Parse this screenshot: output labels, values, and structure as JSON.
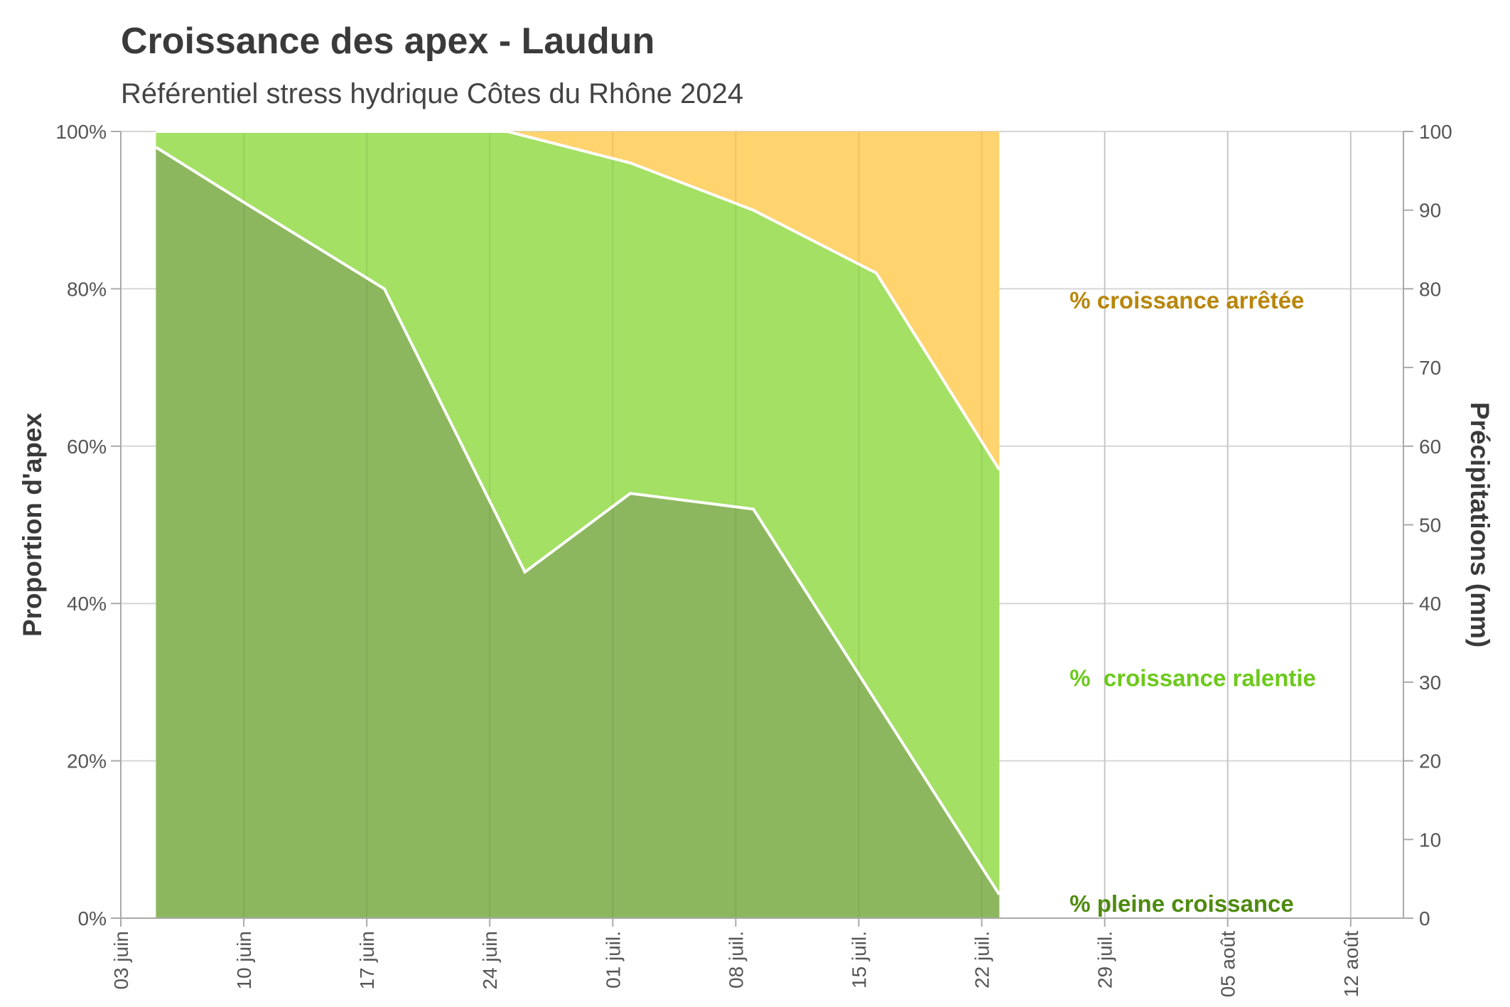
{
  "header": {
    "title": "Croissance des apex - Laudun",
    "subtitle": "Référentiel stress hydrique Côtes du Rhône 2024"
  },
  "chart_data": {
    "type": "area",
    "title": "Croissance des apex - Laudun",
    "subtitle": "Référentiel stress hydrique Côtes du Rhône 2024",
    "ylabel": "Proportion d'apex",
    "y2label": "Précipitations (mm)",
    "xlim": [
      "2024-06-03",
      "2024-08-15"
    ],
    "ylim": [
      0,
      100
    ],
    "y2lim": [
      0,
      100
    ],
    "grid": true,
    "x_ticks": [
      {
        "date": "2024-06-03",
        "label": "03 juin"
      },
      {
        "date": "2024-06-10",
        "label": "10 juin"
      },
      {
        "date": "2024-06-17",
        "label": "17 juin"
      },
      {
        "date": "2024-06-24",
        "label": "24 juin"
      },
      {
        "date": "2024-07-01",
        "label": "01 juil."
      },
      {
        "date": "2024-07-08",
        "label": "08 juil."
      },
      {
        "date": "2024-07-15",
        "label": "15 juil."
      },
      {
        "date": "2024-07-22",
        "label": "22 juil."
      },
      {
        "date": "2024-07-29",
        "label": "29 juil."
      },
      {
        "date": "2024-08-05",
        "label": "05 août"
      },
      {
        "date": "2024-08-12",
        "label": "12 août"
      }
    ],
    "y_ticks": [
      {
        "value": 0,
        "label": "0%"
      },
      {
        "value": 20,
        "label": "20%"
      },
      {
        "value": 40,
        "label": "40%"
      },
      {
        "value": 60,
        "label": "60%"
      },
      {
        "value": 80,
        "label": "80%"
      },
      {
        "value": 100,
        "label": "100%"
      }
    ],
    "y2_ticks": [
      {
        "value": 0,
        "label": "0"
      },
      {
        "value": 10,
        "label": "10"
      },
      {
        "value": 20,
        "label": "20"
      },
      {
        "value": 30,
        "label": "30"
      },
      {
        "value": 40,
        "label": "40"
      },
      {
        "value": 50,
        "label": "50"
      },
      {
        "value": 60,
        "label": "60"
      },
      {
        "value": 70,
        "label": "70"
      },
      {
        "value": 80,
        "label": "80"
      },
      {
        "value": 90,
        "label": "90"
      },
      {
        "value": 100,
        "label": "100"
      }
    ],
    "series": [
      {
        "name": "% pleine croissance",
        "color": "#8db75f",
        "label_color": "#4e8a0f",
        "points": [
          {
            "x": "2024-06-05",
            "y": 98
          },
          {
            "x": "2024-06-10",
            "y": 91
          },
          {
            "x": "2024-06-18",
            "y": 80
          },
          {
            "x": "2024-06-26",
            "y": 44
          },
          {
            "x": "2024-07-02",
            "y": 54
          },
          {
            "x": "2024-07-09",
            "y": 52
          },
          {
            "x": "2024-07-23",
            "y": 3
          }
        ]
      },
      {
        "name": "%  croissance ralentie",
        "color": "#a3e063",
        "label_color": "#6cc91c",
        "points": [
          {
            "x": "2024-06-05",
            "y": 100
          },
          {
            "x": "2024-06-25",
            "y": 100
          },
          {
            "x": "2024-07-02",
            "y": 96
          },
          {
            "x": "2024-07-09",
            "y": 90
          },
          {
            "x": "2024-07-16",
            "y": 82
          },
          {
            "x": "2024-07-23",
            "y": 57
          }
        ]
      },
      {
        "name": "% croissance arrêtée",
        "color": "#ffd36e",
        "label_color": "#b8860b",
        "points": [
          {
            "x": "2024-06-05",
            "y": 100
          },
          {
            "x": "2024-07-23",
            "y": 100
          }
        ]
      }
    ]
  }
}
